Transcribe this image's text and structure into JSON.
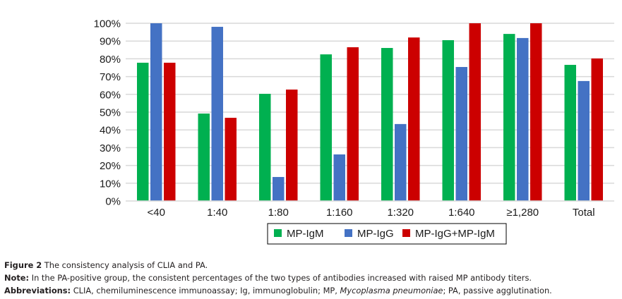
{
  "chart_data": {
    "type": "bar",
    "title": "",
    "xlabel": "",
    "ylabel": "",
    "ylim": [
      0,
      100
    ],
    "yticks": [
      "0%",
      "10%",
      "20%",
      "30%",
      "40%",
      "50%",
      "60%",
      "70%",
      "80%",
      "90%",
      "100%"
    ],
    "grid": true,
    "legend_position": "bottom",
    "categories": [
      "<40",
      "1:40",
      "1:80",
      "1:160",
      "1:320",
      "1:640",
      "≥1,280",
      "Total"
    ],
    "series": [
      {
        "name": "MP-IgM",
        "color": "#00b050",
        "values": [
          77.8,
          49.2,
          60.3,
          82.5,
          86.1,
          90.5,
          94.0,
          76.6
        ]
      },
      {
        "name": "MP-IgG",
        "color": "#4472c4",
        "values": [
          100,
          98.0,
          13.5,
          26.2,
          43.3,
          75.4,
          91.7,
          67.5
        ]
      },
      {
        "name": "MP-IgG+MP-IgM",
        "color": "#cc0000",
        "values": [
          77.8,
          46.8,
          62.7,
          86.5,
          92.0,
          100,
          100,
          80.2
        ]
      }
    ]
  },
  "caption": {
    "figure_label": "Figure 2",
    "figure_text": " The consistency analysis of CLIA and PA.",
    "note_label": "Note:",
    "note_text": " In the PA-positive group, the consistent percentages of the two types of antibodies increased with raised MP antibody titers.",
    "abbr_label": "Abbreviations:",
    "abbr_text_1": " CLIA, chemiluminescence immunoassay; Ig, immunoglobulin; MP, ",
    "abbr_italic": "Mycoplasma pneumoniae",
    "abbr_text_2": "; PA, passive agglutination."
  }
}
